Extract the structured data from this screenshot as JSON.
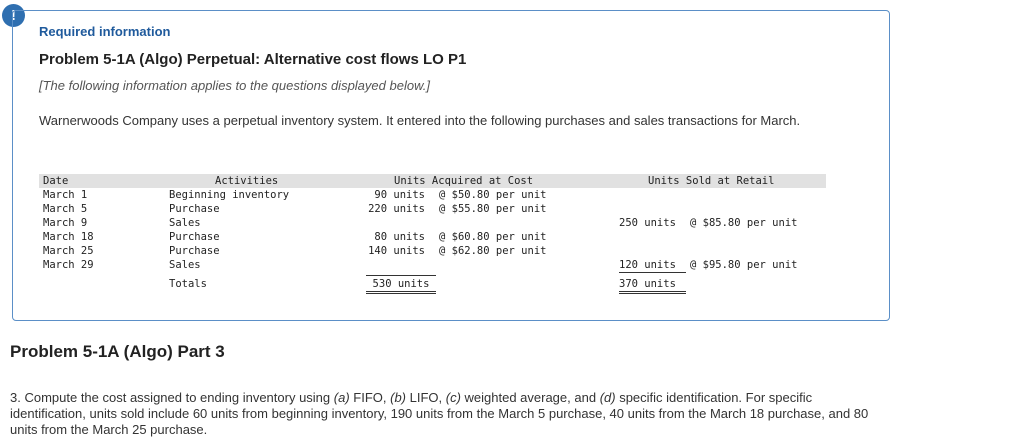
{
  "alert": {
    "symbol": "!"
  },
  "info": {
    "required_title": "Required information",
    "problem_title": "Problem 5-1A (Algo) Perpetual: Alternative cost flows LO P1",
    "note": "[The following information applies to the questions displayed below.]",
    "intro": "Warnerwoods Company uses a perpetual inventory system. It entered into the following purchases and sales transactions for March."
  },
  "table": {
    "headers": {
      "date": "Date",
      "activities": "Activities",
      "acquired": "Units Acquired at Cost",
      "sold": "Units Sold at Retail"
    },
    "rows": [
      {
        "date": "March 1",
        "activity": "Beginning inventory",
        "acq_units": "90 units",
        "acq_price": "@ $50.80 per unit",
        "sold_units": "",
        "sold_price": ""
      },
      {
        "date": "March 5",
        "activity": "Purchase",
        "acq_units": "220 units",
        "acq_price": "@ $55.80 per unit",
        "sold_units": "",
        "sold_price": ""
      },
      {
        "date": "March 9",
        "activity": "Sales",
        "acq_units": "",
        "acq_price": "",
        "sold_units": "250 units",
        "sold_price": "@ $85.80 per unit"
      },
      {
        "date": "March 18",
        "activity": "Purchase",
        "acq_units": "80 units",
        "acq_price": "@ $60.80 per unit",
        "sold_units": "",
        "sold_price": ""
      },
      {
        "date": "March 25",
        "activity": "Purchase",
        "acq_units": "140 units",
        "acq_price": "@ $62.80 per unit",
        "sold_units": "",
        "sold_price": ""
      },
      {
        "date": "March 29",
        "activity": "Sales",
        "acq_units": "",
        "acq_price": "",
        "sold_units": "120 units",
        "sold_price": "@ $95.80 per unit"
      }
    ],
    "totals": {
      "label": "Totals",
      "acquired": "530 units",
      "sold": "370 units"
    }
  },
  "part": {
    "title": "Problem 5-1A (Algo) Part 3",
    "q_num": "3.",
    "q_a": "(a)",
    "q_b": "(b)",
    "q_c": "(c)",
    "q_d": "(d)",
    "q_t1": " Compute the cost assigned to ending inventory using ",
    "q_t2": " FIFO, ",
    "q_t3": " LIFO, ",
    "q_t4": " weighted average, and ",
    "q_t5": " specific identification. For specific identification, units sold include 60 units from beginning inventory, 190 units from the March 5 purchase, 40 units from the March 18 purchase, and 80 units from the March 25 purchase."
  }
}
